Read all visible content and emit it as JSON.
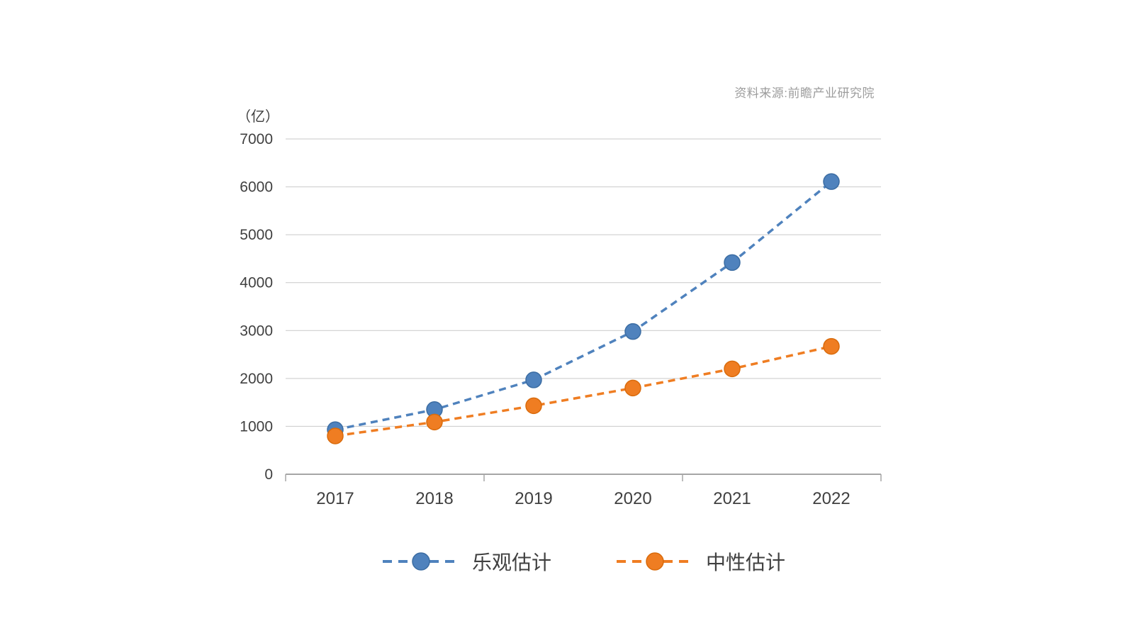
{
  "chart_data": {
    "type": "line",
    "unit_label": "（亿）",
    "source": "资料来源:前瞻产业研究院",
    "categories": [
      "2017",
      "2018",
      "2019",
      "2020",
      "2021",
      "2022"
    ],
    "series": [
      {
        "name": "乐观估计",
        "values": [
          930,
          1350,
          1970,
          2980,
          4420,
          6110
        ],
        "color": "#4F82BD",
        "marker_stroke": "#3C6DA3",
        "line_style": "dashed",
        "marker": "circle"
      },
      {
        "name": "中性估计",
        "values": [
          800,
          1090,
          1430,
          1800,
          2200,
          2670
        ],
        "color": "#EF7D22",
        "marker_stroke": "#D96B0C",
        "line_style": "dashed",
        "marker": "circle"
      }
    ],
    "ylim": [
      0,
      7000
    ],
    "yticks": [
      0,
      1000,
      2000,
      3000,
      4000,
      5000,
      6000,
      7000
    ],
    "xlabel": "",
    "ylabel": "",
    "grid": true,
    "legend_position": "bottom"
  },
  "colors": {
    "grid_line": "#C9C9C9",
    "axis_line": "#A6A6A6",
    "tick_text": "#404040",
    "source_text": "#9C9C9C"
  }
}
